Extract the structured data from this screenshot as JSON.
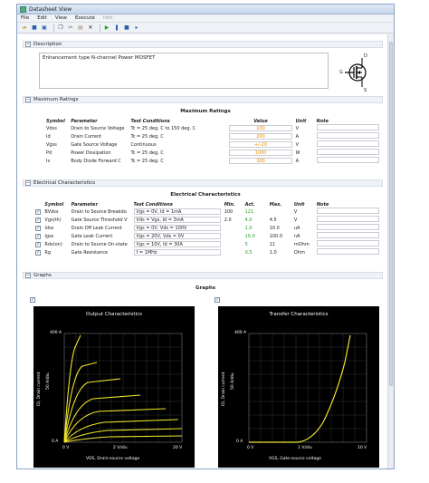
{
  "window": {
    "title": "Datasheet View"
  },
  "menu": [
    "File",
    "Edit",
    "View",
    "Execute",
    "Info"
  ],
  "sections": {
    "description": "Description",
    "max_ratings": "Maximum Ratings",
    "electrical": "Electrical Characteristics",
    "graphs": "Graphs"
  },
  "description_text": "Enhancement type N-channel Power MOSFET",
  "symbol_labels": {
    "d": "D",
    "g": "G",
    "s": "S"
  },
  "max_ratings": {
    "title": "Maximum Ratings",
    "headers": [
      "Symbol",
      "Parameter",
      "Test Conditions",
      "Value",
      "Unit",
      "Note"
    ],
    "rows": [
      {
        "symbol": "Vdss",
        "parameter": "Drain to Source Voltage",
        "cond": "Tc = 25 deg. C to 150 deg. C",
        "value": "100",
        "unit": "V"
      },
      {
        "symbol": "Id",
        "parameter": "Drain Current",
        "cond": "Tc = 25 deg. C",
        "value": "200",
        "unit": "A"
      },
      {
        "symbol": "Vgss",
        "parameter": "Gate Source Voltage",
        "cond": "Continuous",
        "value": "+/-20",
        "unit": "V"
      },
      {
        "symbol": "Pd",
        "parameter": "Power Dissipation",
        "cond": "Tc = 25 deg. C",
        "value": "1000",
        "unit": "W"
      },
      {
        "symbol": "Is",
        "parameter": "Body Diode Forward C",
        "cond": "Tc = 25 deg. C",
        "value": "200",
        "unit": "A"
      }
    ]
  },
  "electrical": {
    "title": "Electrical Characteristics",
    "headers": [
      "Symbol",
      "Parameter",
      "Test Conditions",
      "Min.",
      "Act.",
      "Max.",
      "Unit",
      "Note"
    ],
    "rows": [
      {
        "symbol": "BVdss",
        "parameter": "Drain to Source Breakdo",
        "cond": "Vgs = 0V, Id = 1mA",
        "min": "100",
        "act": "121",
        "max": "",
        "unit": "V"
      },
      {
        "symbol": "Vgs(th)",
        "parameter": "Gate Source Threshold V",
        "cond": "Vds = Vgs, Id = 3mA",
        "min": "2.0",
        "act": "4.0",
        "max": "4.5",
        "unit": "V"
      },
      {
        "symbol": "Idss",
        "parameter": "Drain Off Leak Current",
        "cond": "Vgs = 0V, Vds = 100V",
        "min": "",
        "act": "1.0",
        "max": "10.0",
        "unit": "uA"
      },
      {
        "symbol": "Igss",
        "parameter": "Gate Leak Current",
        "cond": "Vgs = 20V, Vds = 0V",
        "min": "",
        "act": "10.0",
        "max": "100.0",
        "unit": "nA"
      },
      {
        "symbol": "Rds(on)",
        "parameter": "Drain to Source On-state",
        "cond": "Vgs = 10V, Id = 30A",
        "min": "",
        "act": "5",
        "max": "11",
        "unit": "mOhm"
      },
      {
        "symbol": "Rg",
        "parameter": "Gate Resistance",
        "cond": "f = 1MHz",
        "min": "",
        "act": "0.5",
        "max": "1.0",
        "unit": "Ohm"
      }
    ]
  },
  "graphs": {
    "title": "Graphs",
    "output": {
      "title": "Output Characteristics",
      "y_top": "400 A",
      "y_mid": "50 A/div.",
      "y_bottom": "0 A",
      "y_axis": "ID, Drain current",
      "x_left": "0 V",
      "x_mid": "2 V/div.",
      "x_right": "20 V",
      "x_axis": "VDS, Drain-source voltage"
    },
    "transfer": {
      "title": "Transfer Characteristics",
      "y_top": "400 A",
      "y_mid": "50 A/div.",
      "y_bottom": "0 A",
      "y_axis": "ID, Drain current",
      "x_left": "0 V",
      "x_mid": "1 V/div.",
      "x_right": "10 V",
      "x_axis": "VGS, Gate-source voltage"
    }
  },
  "colors": {
    "accent": "#e58a00",
    "good": "#1f9d2a",
    "curve": "#f0e62a"
  }
}
